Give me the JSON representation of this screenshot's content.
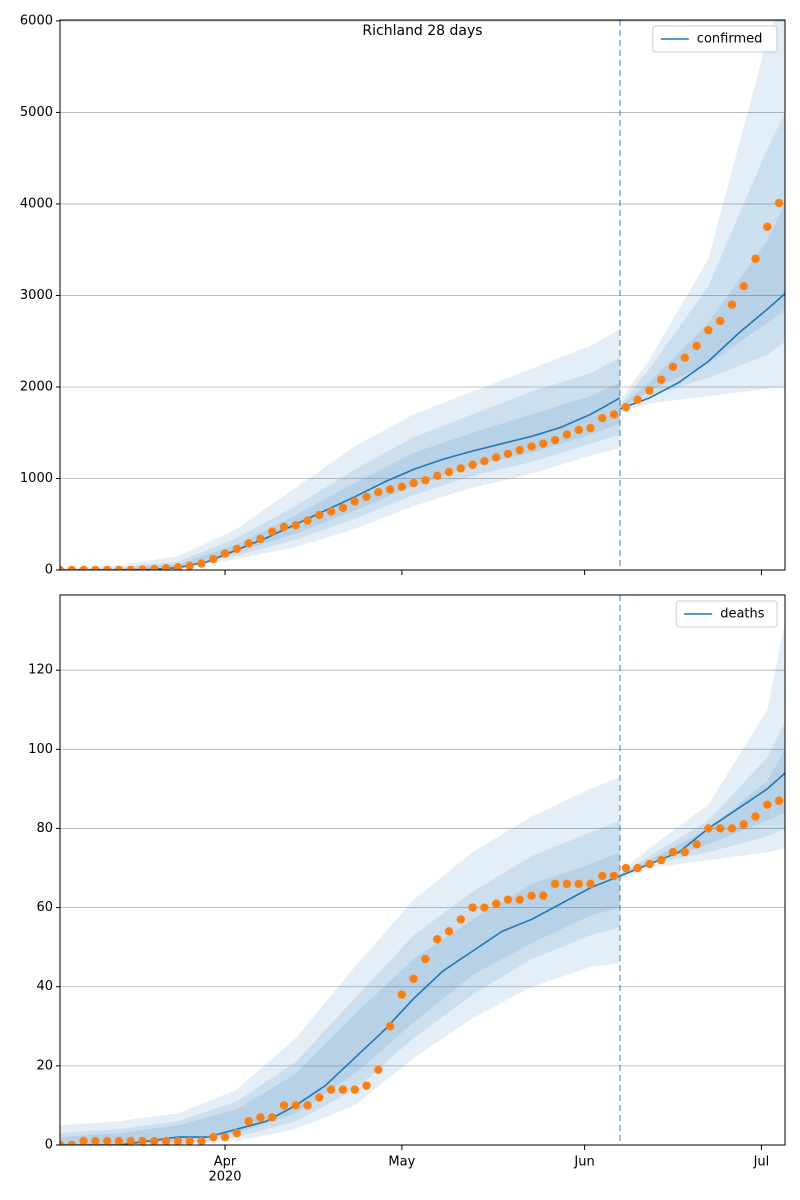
{
  "chart_data": [
    {
      "type": "line",
      "title": "Richland 28 days",
      "xlim": [
        0,
        123
      ],
      "xticks": [
        {
          "value": 28,
          "label": "Apr"
        },
        {
          "value": 58,
          "label": "May"
        },
        {
          "value": 89,
          "label": "Jun"
        },
        {
          "value": 119,
          "label": "Jul"
        }
      ],
      "xtick_labels": false,
      "ylim": [
        0,
        6010
      ],
      "yticks": [
        0,
        1000,
        2000,
        3000,
        4000,
        5000,
        6000
      ],
      "grid": true,
      "legend": "upper right",
      "vline": 95,
      "series": [
        {
          "name": "confirmed",
          "color": "#1f77b4",
          "x": [
            0,
            5,
            10,
            15,
            20,
            25,
            30,
            35,
            40,
            45,
            50,
            55,
            60,
            65,
            70,
            75,
            80,
            85,
            90,
            95,
            95,
            95,
            100,
            105,
            110,
            115,
            120,
            123
          ],
          "values": [
            0,
            0,
            0,
            5,
            25,
            90,
            220,
            350,
            500,
            650,
            800,
            960,
            1100,
            1210,
            1300,
            1380,
            1460,
            1560,
            1700,
            1880,
            null,
            1760,
            1880,
            2050,
            2280,
            2580,
            2850,
            3020
          ]
        }
      ],
      "observed": {
        "color": "#ff7f0e",
        "x": [
          0,
          2,
          4,
          6,
          8,
          10,
          12,
          14,
          16,
          18,
          20,
          22,
          24,
          26,
          28,
          30,
          32,
          34,
          36,
          38,
          40,
          42,
          44,
          46,
          48,
          50,
          52,
          54,
          56,
          58,
          60,
          62,
          64,
          66,
          68,
          70,
          72,
          74,
          76,
          78,
          80,
          82,
          84,
          86,
          88,
          90,
          92,
          94,
          96,
          98,
          100,
          102,
          104,
          106,
          108,
          110,
          112,
          114,
          116,
          118,
          120,
          122
        ],
        "values": [
          0,
          0,
          0,
          0,
          0,
          0,
          0,
          5,
          10,
          20,
          30,
          45,
          70,
          120,
          180,
          230,
          290,
          340,
          420,
          470,
          490,
          540,
          600,
          640,
          680,
          750,
          800,
          850,
          880,
          910,
          950,
          980,
          1030,
          1070,
          1110,
          1150,
          1190,
          1230,
          1270,
          1310,
          1350,
          1380,
          1420,
          1480,
          1530,
          1550,
          1660,
          1700,
          1780,
          1860,
          1960,
          2080,
          2220,
          2320,
          2450,
          2620,
          2720,
          2900,
          3100,
          3400,
          3750,
          4010
        ]
      },
      "band_color": "#1f77b4",
      "band_x": [
        0,
        10,
        20,
        30,
        40,
        50,
        60,
        70,
        80,
        90,
        95,
        95,
        95,
        100,
        110,
        120,
        123
      ],
      "bands": [
        {
          "upper": [
            20,
            50,
            150,
            450,
            900,
            1350,
            1700,
            1950,
            2200,
            2450,
            2630,
            null,
            1850,
            2300,
            3400,
            5800,
            6300
          ],
          "lower": [
            0,
            0,
            10,
            120,
            250,
            450,
            700,
            900,
            1050,
            1250,
            1330,
            null,
            1720,
            1820,
            1900,
            1980,
            2000
          ]
        },
        {
          "upper": [
            10,
            30,
            90,
            350,
            700,
            1100,
            1450,
            1700,
            1950,
            2150,
            2320,
            null,
            1800,
            2200,
            3100,
            4600,
            5000
          ],
          "lower": [
            0,
            0,
            15,
            160,
            330,
            560,
            820,
            1030,
            1180,
            1380,
            1480,
            null,
            1740,
            1900,
            2100,
            2350,
            2500
          ]
        },
        {
          "upper": [
            5,
            15,
            60,
            280,
            600,
            950,
            1280,
            1500,
            1700,
            1900,
            2050,
            null,
            1780,
            2050,
            2700,
            3600,
            4000
          ],
          "lower": [
            0,
            0,
            20,
            190,
            400,
            650,
            920,
            1140,
            1280,
            1480,
            1600,
            null,
            1760,
            1960,
            2250,
            2700,
            2850
          ]
        }
      ]
    },
    {
      "type": "line",
      "xlim": [
        0,
        123
      ],
      "xticks": [
        {
          "value": 28,
          "label": "Apr"
        },
        {
          "value": 58,
          "label": "May"
        },
        {
          "value": 89,
          "label": "Jun"
        },
        {
          "value": 119,
          "label": "Jul"
        }
      ],
      "xtick_labels": true,
      "x_sublabel": "2020",
      "ylim": [
        0,
        139
      ],
      "yticks": [
        0,
        20,
        40,
        60,
        80,
        100,
        120
      ],
      "grid": true,
      "legend": "upper right",
      "vline": 95,
      "series": [
        {
          "name": "deaths",
          "color": "#1f77b4",
          "x": [
            0,
            5,
            10,
            15,
            20,
            25,
            30,
            35,
            40,
            45,
            50,
            55,
            60,
            65,
            70,
            75,
            80,
            85,
            90,
            95,
            95,
            95,
            100,
            105,
            110,
            115,
            120,
            123
          ],
          "values": [
            0,
            0,
            0,
            1,
            2,
            2,
            4,
            6,
            10,
            15,
            22,
            29,
            37,
            44,
            49,
            54,
            57,
            61,
            65,
            68,
            null,
            68,
            71,
            74,
            80,
            85,
            90,
            94
          ]
        }
      ],
      "observed": {
        "color": "#ff7f0e",
        "x": [
          0,
          2,
          4,
          6,
          8,
          10,
          12,
          14,
          16,
          18,
          20,
          22,
          24,
          26,
          28,
          30,
          32,
          34,
          36,
          38,
          40,
          42,
          44,
          46,
          48,
          50,
          52,
          54,
          56,
          58,
          60,
          62,
          64,
          66,
          68,
          70,
          72,
          74,
          76,
          78,
          80,
          82,
          84,
          86,
          88,
          90,
          92,
          94,
          96,
          98,
          100,
          102,
          104,
          106,
          108,
          110,
          112,
          114,
          116,
          118,
          120,
          122
        ],
        "values": [
          0,
          0,
          1,
          1,
          1,
          1,
          1,
          1,
          1,
          1,
          1,
          1,
          1,
          2,
          2,
          3,
          6,
          7,
          7,
          10,
          10,
          10,
          12,
          14,
          14,
          14,
          15,
          19,
          30,
          38,
          42,
          47,
          52,
          54,
          57,
          60,
          60,
          61,
          62,
          62,
          63,
          63,
          66,
          66,
          66,
          66,
          68,
          68,
          70,
          70,
          71,
          72,
          74,
          74,
          76,
          80,
          80,
          80,
          81,
          83,
          86,
          87
        ]
      },
      "band_color": "#1f77b4",
      "band_x": [
        0,
        10,
        20,
        30,
        40,
        50,
        60,
        70,
        80,
        90,
        95,
        95,
        95,
        100,
        110,
        120,
        123
      ],
      "bands": [
        {
          "upper": [
            5,
            6,
            8,
            14,
            27,
            45,
            62,
            74,
            83,
            90,
            93,
            null,
            69,
            75,
            86,
            110,
            132
          ],
          "lower": [
            0,
            0,
            0,
            1,
            4,
            10,
            22,
            32,
            40,
            45,
            46,
            null,
            67,
            70,
            72,
            74,
            75
          ]
        },
        {
          "upper": [
            3,
            4,
            6,
            11,
            21,
            37,
            53,
            64,
            73,
            79,
            82,
            null,
            68.5,
            73,
            82,
            98,
            107
          ],
          "lower": [
            0,
            0,
            0,
            2,
            6,
            14,
            27,
            38,
            47,
            53,
            55,
            null,
            67.5,
            71,
            74,
            78,
            80
          ]
        },
        {
          "upper": [
            2,
            3,
            5,
            9,
            18,
            33,
            47,
            57,
            66,
            71,
            74,
            null,
            68.5,
            72,
            80,
            92,
            100
          ],
          "lower": [
            0,
            0,
            1,
            3,
            8,
            18,
            31,
            43,
            51,
            58,
            60,
            null,
            68,
            71,
            76,
            82,
            84
          ]
        }
      ]
    }
  ]
}
